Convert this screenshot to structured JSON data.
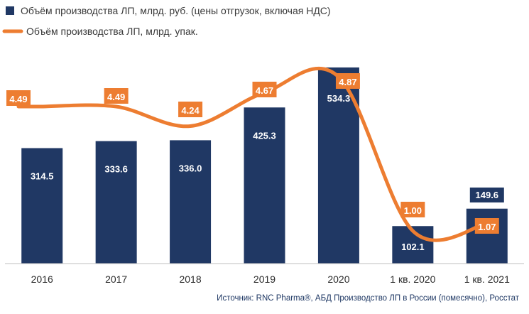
{
  "colors": {
    "bar": "#203864",
    "line": "#ED7D31",
    "axis": "#bfbfbf"
  },
  "chart_data": {
    "type": "bar",
    "categories": [
      "2016",
      "2017",
      "2018",
      "2019",
      "2020",
      "1 кв. 2020",
      "1 кв. 2021"
    ],
    "series": [
      {
        "name": "Объём производства ЛП, млрд. руб. (цены отгрузок, включая НДС)",
        "kind": "bar",
        "values": [
          314.5,
          333.6,
          336.0,
          425.3,
          534.3,
          102.1,
          149.6
        ]
      },
      {
        "name": "Объём производства ЛП, млрд. упак.",
        "kind": "line",
        "smooth": true,
        "values": [
          4.49,
          4.49,
          4.24,
          4.67,
          4.87,
          1.0,
          1.07
        ]
      }
    ],
    "bar_labels": [
      "314.5",
      "333.6",
      "336.0",
      "425.3",
      "534.3",
      "102.1",
      "149.6"
    ],
    "line_labels": [
      "4.49",
      "4.49",
      "4.24",
      "4.67",
      "4.87",
      "1.00",
      "1.07"
    ],
    "ylim_bars": [
      0,
      540
    ],
    "ylim_line": [
      0,
      5.4
    ],
    "legend_position": "top-left",
    "grid": false
  },
  "source": "Источник: RNC Pharma®, АБД Производство ЛП в России (помесячно), Росстат"
}
